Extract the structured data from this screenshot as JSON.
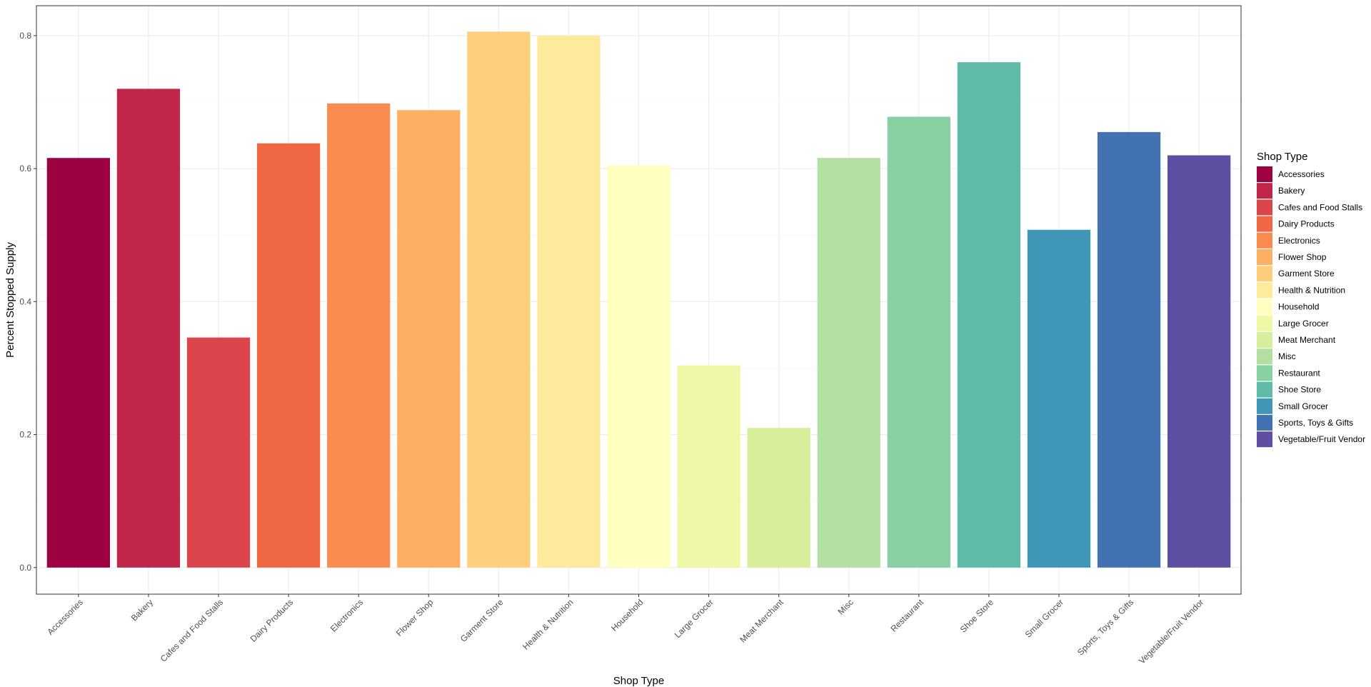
{
  "chart_data": {
    "type": "bar",
    "xlabel": "Shop Type",
    "ylabel": "Percent Stopped Supply",
    "ylim": [
      -0.04,
      0.845
    ],
    "yticks": [
      0.0,
      0.2,
      0.4,
      0.6,
      0.8
    ],
    "ytick_labels": [
      "0.0",
      "0.2",
      "0.4",
      "0.6",
      "0.8"
    ],
    "grid": true,
    "legend": {
      "title": "Shop Type",
      "placement": "right"
    },
    "categories": [
      "Accessories",
      "Bakery",
      "Cafes and Food Stalls",
      "Dairy Products",
      "Electronics",
      "Flower Shop",
      "Garment Store",
      "Health & Nutrition",
      "Household",
      "Large Grocer",
      "Meat Merchant",
      "Misc",
      "Restaurant",
      "Shoe Store",
      "Small Grocer",
      "Sports, Toys & Gifts",
      "Vegetable/Fruit Vendor"
    ],
    "values": [
      0.616,
      0.72,
      0.346,
      0.638,
      0.698,
      0.688,
      0.806,
      0.8,
      0.605,
      0.304,
      0.21,
      0.616,
      0.678,
      0.76,
      0.508,
      0.655,
      0.62
    ],
    "colors": [
      "#9E0142",
      "#C0254A",
      "#DA464C",
      "#F06744",
      "#F88C51",
      "#FDB063",
      "#FDCE7C",
      "#FEEA9B",
      "#FFFFBF",
      "#EFF8A6",
      "#D7EE9B",
      "#B3E0A2",
      "#88CFA4",
      "#5FBAA8",
      "#3F96B7",
      "#4272B2",
      "#5E4FA2"
    ]
  }
}
